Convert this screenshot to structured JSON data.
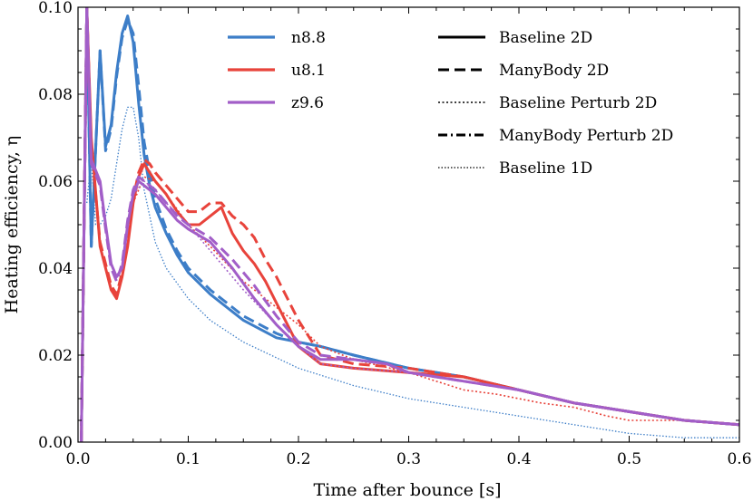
{
  "chart_data": {
    "type": "line",
    "title": "",
    "xlabel": "Time after bounce [s]",
    "ylabel": "Heating efficiency, η",
    "xlim": [
      0.0,
      0.6
    ],
    "ylim": [
      0.0,
      0.1
    ],
    "xticks": [
      0.0,
      0.1,
      0.2,
      0.3,
      0.4,
      0.5,
      0.6
    ],
    "yticks": [
      0.0,
      0.02,
      0.04,
      0.06,
      0.08,
      0.1
    ],
    "xtick_labels": [
      "0.0",
      "0.1",
      "0.2",
      "0.3",
      "0.4",
      "0.5",
      "0.6"
    ],
    "ytick_labels": [
      "0.00",
      "0.02",
      "0.04",
      "0.06",
      "0.08",
      "0.10"
    ],
    "grid": false,
    "colors": {
      "n8.8": "#3d7ec8",
      "u8.1": "#e8433b",
      "z9.6": "#a25ec8"
    },
    "legend_models": [
      {
        "label": "n8.8",
        "color": "#3d7ec8"
      },
      {
        "label": "u8.1",
        "color": "#e8433b"
      },
      {
        "label": "z9.6",
        "color": "#a25ec8"
      }
    ],
    "legend_styles": [
      {
        "label": "Baseline 2D",
        "style": "solid"
      },
      {
        "label": "ManyBody 2D",
        "style": "dashed"
      },
      {
        "label": "Baseline Perturb 2D",
        "style": "dotted"
      },
      {
        "label": "ManyBody Perturb 2D",
        "style": "dashdot"
      },
      {
        "label": "Baseline 1D",
        "style": "thin-dotted"
      }
    ],
    "series": [
      {
        "name": "n8.8 Baseline 2D",
        "model": "n8.8",
        "style": "solid",
        "x": [
          0.003,
          0.008,
          0.012,
          0.02,
          0.025,
          0.03,
          0.035,
          0.04,
          0.045,
          0.05,
          0.055,
          0.06,
          0.065,
          0.07,
          0.08,
          0.09,
          0.1,
          0.12,
          0.15,
          0.18,
          0.2,
          0.22,
          0.25,
          0.3,
          0.35,
          0.4,
          0.45,
          0.5,
          0.55,
          0.6
        ],
        "y": [
          0.0,
          0.1,
          0.045,
          0.09,
          0.068,
          0.073,
          0.085,
          0.094,
          0.098,
          0.092,
          0.078,
          0.066,
          0.059,
          0.054,
          0.048,
          0.043,
          0.039,
          0.034,
          0.028,
          0.024,
          0.023,
          0.022,
          0.02,
          0.017,
          0.015,
          0.012,
          0.009,
          0.007,
          0.005,
          0.004
        ]
      },
      {
        "name": "n8.8 ManyBody 2D",
        "model": "n8.8",
        "style": "dashed",
        "x": [
          0.003,
          0.008,
          0.012,
          0.02,
          0.025,
          0.03,
          0.035,
          0.04,
          0.045,
          0.05,
          0.055,
          0.06,
          0.065,
          0.07,
          0.08,
          0.09,
          0.1,
          0.12,
          0.15,
          0.18,
          0.2,
          0.22,
          0.25,
          0.3,
          0.35,
          0.4,
          0.45,
          0.5,
          0.55,
          0.6
        ],
        "y": [
          0.0,
          0.1,
          0.045,
          0.09,
          0.067,
          0.072,
          0.084,
          0.093,
          0.097,
          0.094,
          0.082,
          0.069,
          0.062,
          0.056,
          0.049,
          0.044,
          0.04,
          0.035,
          0.029,
          0.025,
          0.023,
          0.022,
          0.02,
          0.017,
          0.015,
          0.012,
          0.009,
          0.007,
          0.005,
          0.004
        ]
      },
      {
        "name": "n8.8 Baseline 1D",
        "model": "n8.8",
        "style": "thin-dotted",
        "x": [
          0.008,
          0.012,
          0.016,
          0.02,
          0.025,
          0.03,
          0.035,
          0.04,
          0.045,
          0.05,
          0.055,
          0.06,
          0.07,
          0.08,
          0.1,
          0.12,
          0.15,
          0.2,
          0.25,
          0.3,
          0.35,
          0.4,
          0.45,
          0.5,
          0.55,
          0.6
        ],
        "y": [
          0.055,
          0.065,
          0.05,
          0.05,
          0.052,
          0.056,
          0.064,
          0.072,
          0.077,
          0.077,
          0.07,
          0.058,
          0.046,
          0.04,
          0.033,
          0.028,
          0.023,
          0.017,
          0.013,
          0.01,
          0.008,
          0.006,
          0.004,
          0.002,
          0.001,
          0.001
        ]
      },
      {
        "name": "u8.1 Baseline 2D",
        "model": "u8.1",
        "style": "solid",
        "x": [
          0.003,
          0.008,
          0.012,
          0.02,
          0.025,
          0.03,
          0.035,
          0.04,
          0.045,
          0.05,
          0.055,
          0.06,
          0.065,
          0.07,
          0.08,
          0.09,
          0.1,
          0.11,
          0.12,
          0.13,
          0.14,
          0.15,
          0.16,
          0.17,
          0.18,
          0.19,
          0.2,
          0.22,
          0.25,
          0.3,
          0.35,
          0.4,
          0.45,
          0.5,
          0.55,
          0.6
        ],
        "y": [
          0.0,
          0.1,
          0.07,
          0.045,
          0.04,
          0.035,
          0.033,
          0.038,
          0.045,
          0.055,
          0.061,
          0.064,
          0.062,
          0.06,
          0.057,
          0.053,
          0.05,
          0.05,
          0.052,
          0.054,
          0.048,
          0.044,
          0.041,
          0.037,
          0.032,
          0.027,
          0.022,
          0.018,
          0.017,
          0.016,
          0.015,
          0.012,
          0.009,
          0.007,
          0.005,
          0.004
        ]
      },
      {
        "name": "u8.1 ManyBody 2D",
        "model": "u8.1",
        "style": "dashed",
        "x": [
          0.003,
          0.008,
          0.012,
          0.02,
          0.025,
          0.03,
          0.035,
          0.04,
          0.045,
          0.05,
          0.055,
          0.06,
          0.065,
          0.07,
          0.08,
          0.09,
          0.1,
          0.11,
          0.12,
          0.13,
          0.14,
          0.15,
          0.16,
          0.17,
          0.18,
          0.19,
          0.2,
          0.22,
          0.25,
          0.3,
          0.35,
          0.4,
          0.45,
          0.5,
          0.55,
          0.6
        ],
        "y": [
          0.0,
          0.1,
          0.068,
          0.046,
          0.041,
          0.036,
          0.034,
          0.039,
          0.047,
          0.056,
          0.062,
          0.065,
          0.064,
          0.062,
          0.059,
          0.056,
          0.053,
          0.053,
          0.055,
          0.055,
          0.052,
          0.05,
          0.047,
          0.042,
          0.038,
          0.033,
          0.028,
          0.02,
          0.018,
          0.017,
          0.015,
          0.012,
          0.009,
          0.007,
          0.005,
          0.004
        ]
      },
      {
        "name": "u8.1 Baseline Perturb 2D",
        "model": "u8.1",
        "style": "dotted",
        "x": [
          0.05,
          0.06,
          0.07,
          0.08,
          0.1,
          0.12,
          0.15,
          0.18,
          0.2,
          0.22,
          0.25,
          0.3,
          0.35,
          0.38,
          0.4,
          0.42,
          0.45,
          0.48,
          0.5,
          0.55,
          0.6
        ],
        "y": [
          0.055,
          0.061,
          0.06,
          0.057,
          0.05,
          0.045,
          0.037,
          0.031,
          0.027,
          0.022,
          0.019,
          0.016,
          0.012,
          0.011,
          0.01,
          0.009,
          0.008,
          0.006,
          0.005,
          0.005,
          0.004
        ]
      },
      {
        "name": "z9.6 Baseline 2D",
        "model": "z9.6",
        "style": "solid",
        "x": [
          0.003,
          0.008,
          0.012,
          0.02,
          0.025,
          0.03,
          0.035,
          0.04,
          0.045,
          0.05,
          0.055,
          0.06,
          0.07,
          0.08,
          0.09,
          0.1,
          0.12,
          0.14,
          0.16,
          0.18,
          0.2,
          0.22,
          0.25,
          0.28,
          0.3,
          0.35,
          0.4,
          0.45,
          0.5,
          0.55,
          0.6
        ],
        "y": [
          0.0,
          0.1,
          0.065,
          0.06,
          0.05,
          0.041,
          0.038,
          0.04,
          0.05,
          0.057,
          0.06,
          0.059,
          0.057,
          0.054,
          0.051,
          0.049,
          0.046,
          0.04,
          0.033,
          0.027,
          0.022,
          0.019,
          0.019,
          0.018,
          0.016,
          0.014,
          0.012,
          0.009,
          0.007,
          0.005,
          0.004
        ]
      },
      {
        "name": "z9.6 ManyBody 2D",
        "model": "z9.6",
        "style": "dashed",
        "x": [
          0.003,
          0.008,
          0.012,
          0.02,
          0.025,
          0.03,
          0.035,
          0.04,
          0.045,
          0.05,
          0.055,
          0.06,
          0.07,
          0.08,
          0.09,
          0.1,
          0.12,
          0.14,
          0.16,
          0.18,
          0.2,
          0.22,
          0.25,
          0.28,
          0.3,
          0.35,
          0.4,
          0.45,
          0.5,
          0.55,
          0.6
        ],
        "y": [
          0.0,
          0.1,
          0.064,
          0.059,
          0.049,
          0.04,
          0.037,
          0.041,
          0.051,
          0.058,
          0.061,
          0.06,
          0.058,
          0.055,
          0.052,
          0.05,
          0.047,
          0.042,
          0.036,
          0.029,
          0.023,
          0.02,
          0.019,
          0.018,
          0.016,
          0.014,
          0.012,
          0.009,
          0.007,
          0.005,
          0.004
        ]
      },
      {
        "name": "z9.6 Baseline Perturb 2D",
        "model": "z9.6",
        "style": "dotted",
        "x": [
          0.05,
          0.06,
          0.07,
          0.08,
          0.1,
          0.12,
          0.15,
          0.18,
          0.2,
          0.22,
          0.25,
          0.3,
          0.35,
          0.4,
          0.45,
          0.5,
          0.55,
          0.6
        ],
        "y": [
          0.057,
          0.06,
          0.058,
          0.055,
          0.05,
          0.044,
          0.035,
          0.027,
          0.022,
          0.018,
          0.017,
          0.016,
          0.014,
          0.012,
          0.009,
          0.007,
          0.005,
          0.004
        ]
      }
    ]
  }
}
